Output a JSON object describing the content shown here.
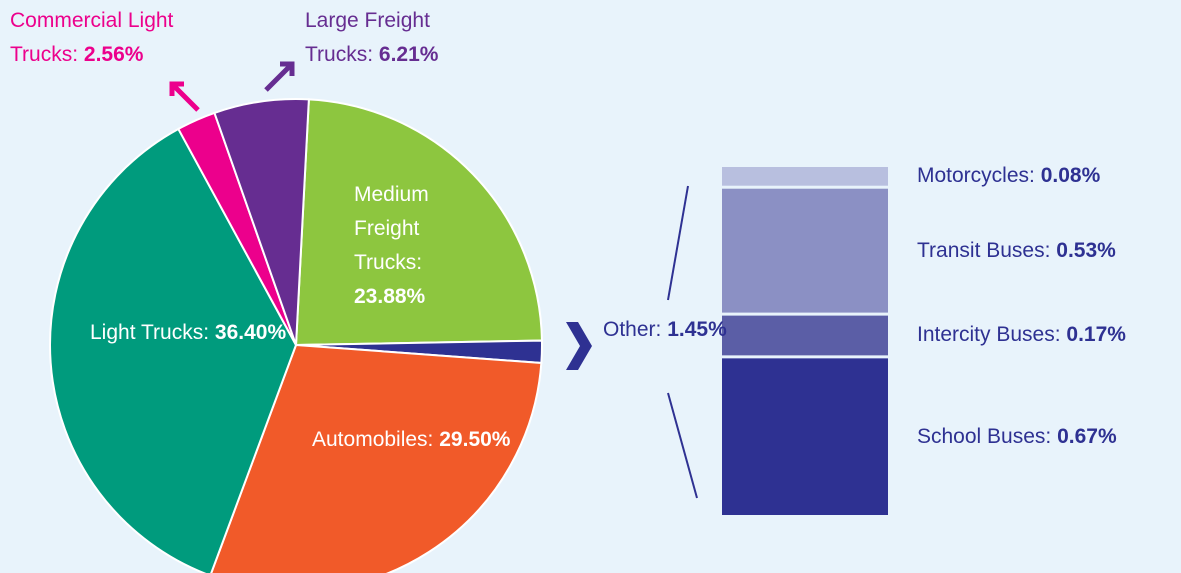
{
  "chart_data": [
    {
      "type": "pie",
      "categories": [
        "Medium Freight Trucks:",
        "Other:",
        "Automobiles:",
        "Light Trucks:",
        "Commercial Light Trucks:",
        "Large Freight Trucks:"
      ],
      "values": [
        23.88,
        1.45,
        29.5,
        36.4,
        2.56,
        6.21
      ],
      "value_labels": [
        "23.88%",
        "1.45%",
        "29.50%",
        "36.40%",
        "2.56%",
        "6.21%"
      ],
      "colors": [
        "#8dc63f",
        "#2e3192",
        "#f15a29",
        "#009b7d",
        "#ec008c",
        "#662d91"
      ]
    },
    {
      "type": "stacked",
      "categories": [
        "School Buses:",
        "Intercity Buses:",
        "Transit Buses:",
        "Motorcycles:"
      ],
      "values": [
        0.67,
        0.17,
        0.53,
        0.08
      ],
      "value_labels": [
        "0.67%",
        "0.17%",
        "0.53%",
        "0.08%"
      ],
      "colors": [
        "#2e3192",
        "#5b5ea6",
        "#8b90c4",
        "#b8bfdf"
      ]
    }
  ]
}
